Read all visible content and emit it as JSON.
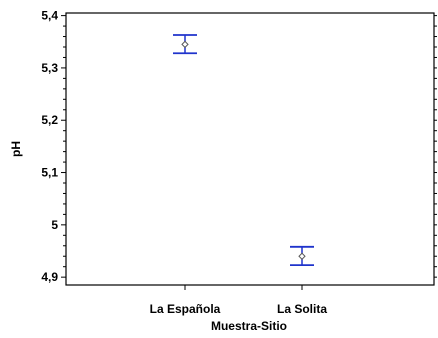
{
  "chart_data": {
    "type": "scatter",
    "subtype": "means-with-intervals",
    "title": "",
    "xlabel": "Muestra-Sitio",
    "ylabel": "pH",
    "categories": [
      "La Española",
      "La Solita"
    ],
    "series": [
      {
        "values": [
          5.345,
          4.94
        ],
        "lower": [
          5.328,
          4.923
        ],
        "upper": [
          5.363,
          4.958
        ]
      }
    ],
    "ylim": [
      4.885,
      5.405
    ],
    "yticks": [
      4.9,
      5.0,
      5.1,
      5.2,
      5.3,
      5.4
    ],
    "ytick_labels": [
      "4,9",
      "5",
      "5,1",
      "5,2",
      "5,3",
      "5,4"
    ],
    "grid": false,
    "legend": "none",
    "colors": {
      "interval": "#1f33cc",
      "point": "#5a5a5a",
      "axis": "#000000"
    }
  }
}
